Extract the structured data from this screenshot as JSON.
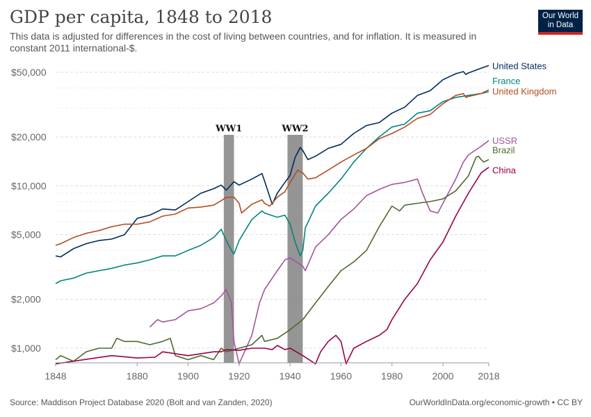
{
  "header": {
    "title": "GDP per capita, 1848 to 2018",
    "subtitle": "This data is adjusted for differences in the cost of living between countries, and for inflation. It is measured in constant 2011 international-$."
  },
  "logo": {
    "line1": "Our World",
    "line2": "in Data",
    "bg_color": "#002147",
    "accent_color": "#ce261e"
  },
  "footer": {
    "source": "Source: Maddison Project Database 2020 (Bolt and van Zanden, 2020)",
    "credit": "OurWorldInData.org/economic-growth • CC BY"
  },
  "chart_data": {
    "type": "line",
    "title": "GDP per capita, 1848 to 2018",
    "xlabel": "",
    "ylabel": "",
    "y_scale": "log",
    "xlim": [
      1848,
      2018
    ],
    "ylim": [
      850,
      60000
    ],
    "grid": true,
    "x_ticks": [
      1848,
      1880,
      1900,
      1920,
      1940,
      1960,
      1980,
      2000,
      2018
    ],
    "x_tick_labels": [
      "1848",
      "1880",
      "1900",
      "1920",
      "1940",
      "1960",
      "1980",
      "2000",
      "2018"
    ],
    "y_ticks": [
      1000,
      2000,
      5000,
      10000,
      20000,
      50000
    ],
    "y_tick_labels": [
      "$1,000",
      "$2,000",
      "$5,000",
      "$10,000",
      "$20,000",
      "$50,000"
    ],
    "legend_placement": "right, at line ends",
    "bands": [
      {
        "label": "WW1",
        "start": 1914,
        "end": 1918
      },
      {
        "label": "WW2",
        "start": 1939,
        "end": 1945
      }
    ],
    "series": [
      {
        "name": "United States",
        "color": "#00295b",
        "x": [
          1848,
          1850,
          1855,
          1860,
          1865,
          1870,
          1875,
          1880,
          1885,
          1890,
          1895,
          1900,
          1905,
          1910,
          1913,
          1915,
          1918,
          1920,
          1925,
          1929,
          1930,
          1933,
          1935,
          1938,
          1940,
          1942,
          1944,
          1945,
          1947,
          1950,
          1955,
          1960,
          1965,
          1970,
          1975,
          1980,
          1985,
          1990,
          1995,
          2000,
          2005,
          2008,
          2009,
          2010,
          2015,
          2018
        ],
        "y": [
          3700,
          3650,
          4100,
          4400,
          4600,
          4700,
          5000,
          6300,
          6600,
          7200,
          7100,
          8000,
          9000,
          9600,
          10100,
          9400,
          10600,
          10100,
          11000,
          11900,
          10700,
          7700,
          9000,
          10500,
          11600,
          15000,
          17200,
          16500,
          14500,
          15200,
          17000,
          18000,
          21000,
          23500,
          24500,
          28000,
          30500,
          36000,
          38500,
          45000,
          49000,
          50500,
          48500,
          49500,
          53000,
          55000
        ]
      },
      {
        "name": "France",
        "color": "#00847e",
        "x": [
          1848,
          1850,
          1855,
          1860,
          1865,
          1870,
          1875,
          1880,
          1885,
          1890,
          1895,
          1900,
          1905,
          1910,
          1913,
          1915,
          1917,
          1918,
          1920,
          1925,
          1929,
          1930,
          1935,
          1938,
          1940,
          1942,
          1944,
          1945,
          1946,
          1950,
          1955,
          1960,
          1965,
          1970,
          1975,
          1980,
          1985,
          1990,
          1995,
          2000,
          2005,
          2010,
          2015,
          2018
        ],
        "y": [
          2500,
          2600,
          2700,
          2900,
          3000,
          3100,
          3250,
          3350,
          3500,
          3700,
          3700,
          4000,
          4300,
          4800,
          5400,
          4600,
          4000,
          3800,
          4600,
          6200,
          7000,
          6800,
          6400,
          6600,
          5800,
          4500,
          3700,
          4000,
          5500,
          7500,
          9000,
          11000,
          14000,
          17000,
          20000,
          23000,
          24000,
          28000,
          29000,
          33000,
          35000,
          36000,
          37000,
          38000
        ]
      },
      {
        "name": "United Kingdom",
        "color": "#b34d22",
        "x": [
          1848,
          1850,
          1855,
          1860,
          1865,
          1870,
          1875,
          1880,
          1885,
          1890,
          1895,
          1900,
          1905,
          1910,
          1913,
          1915,
          1918,
          1920,
          1921,
          1925,
          1929,
          1930,
          1932,
          1935,
          1938,
          1940,
          1943,
          1945,
          1947,
          1950,
          1955,
          1960,
          1965,
          1970,
          1975,
          1980,
          1985,
          1990,
          1995,
          2000,
          2005,
          2008,
          2009,
          2010,
          2015,
          2018
        ],
        "y": [
          4300,
          4400,
          4800,
          5100,
          5300,
          5600,
          5800,
          5800,
          6000,
          6500,
          6700,
          7300,
          7400,
          7600,
          8100,
          8500,
          8500,
          7800,
          6800,
          7700,
          8200,
          7800,
          7500,
          8500,
          9200,
          10500,
          12500,
          12000,
          11000,
          11200,
          12500,
          14000,
          15500,
          17000,
          19500,
          21000,
          23000,
          26000,
          27500,
          32000,
          36000,
          37000,
          35000,
          35500,
          37000,
          39000
        ]
      },
      {
        "name": "USSR",
        "color": "#a2559c",
        "x": [
          1885,
          1888,
          1890,
          1895,
          1900,
          1905,
          1910,
          1913,
          1915,
          1917,
          1918,
          1920,
          1925,
          1928,
          1930,
          1935,
          1938,
          1940,
          1945,
          1946,
          1950,
          1955,
          1960,
          1965,
          1970,
          1975,
          1980,
          1985,
          1990,
          1992,
          1995,
          1998,
          2000,
          2005,
          2008,
          2010,
          2015,
          2018
        ],
        "y": [
          1350,
          1500,
          1450,
          1500,
          1700,
          1750,
          1900,
          2100,
          2300,
          1900,
          1100,
          800,
          1200,
          1900,
          2300,
          3000,
          3500,
          3600,
          3200,
          3000,
          4200,
          5000,
          6200,
          7200,
          8700,
          9500,
          10200,
          10500,
          11000,
          9000,
          7000,
          6800,
          7800,
          11000,
          14000,
          15500,
          17500,
          19000
        ]
      },
      {
        "name": "Brazil",
        "color": "#4c6a2d",
        "x": [
          1848,
          1850,
          1855,
          1860,
          1865,
          1870,
          1872,
          1875,
          1880,
          1885,
          1890,
          1893,
          1895,
          1900,
          1905,
          1910,
          1913,
          1915,
          1920,
          1925,
          1929,
          1930,
          1935,
          1940,
          1945,
          1950,
          1955,
          1960,
          1965,
          1970,
          1975,
          1980,
          1983,
          1985,
          1990,
          1995,
          2000,
          2005,
          2010,
          2013,
          2014,
          2015,
          2016,
          2018
        ],
        "y": [
          850,
          900,
          830,
          950,
          1000,
          1000,
          1150,
          1100,
          1100,
          1050,
          1100,
          1150,
          900,
          850,
          900,
          850,
          1000,
          950,
          1000,
          1050,
          1200,
          1100,
          1150,
          1300,
          1500,
          1900,
          2400,
          3000,
          3400,
          4000,
          5600,
          7500,
          7000,
          7600,
          7800,
          8000,
          8300,
          9300,
          11500,
          15000,
          15200,
          14500,
          14000,
          14500
        ]
      },
      {
        "name": "China",
        "color": "#970046",
        "x": [
          1848,
          1850,
          1870,
          1880,
          1887,
          1890,
          1900,
          1910,
          1913,
          1915,
          1920,
          1925,
          1930,
          1933,
          1935,
          1938,
          1940,
          1945,
          1950,
          1952,
          1955,
          1958,
          1960,
          1962,
          1965,
          1970,
          1975,
          1978,
          1980,
          1985,
          1990,
          1995,
          2000,
          2005,
          2010,
          2015,
          2018
        ],
        "y": [
          800,
          810,
          900,
          870,
          880,
          950,
          900,
          950,
          950,
          980,
          970,
          1000,
          1000,
          980,
          1040,
          980,
          1000,
          900,
          800,
          950,
          1100,
          1200,
          1100,
          800,
          1000,
          1100,
          1200,
          1300,
          1500,
          2000,
          2500,
          3500,
          4500,
          6500,
          9000,
          12000,
          13000
        ]
      }
    ]
  }
}
